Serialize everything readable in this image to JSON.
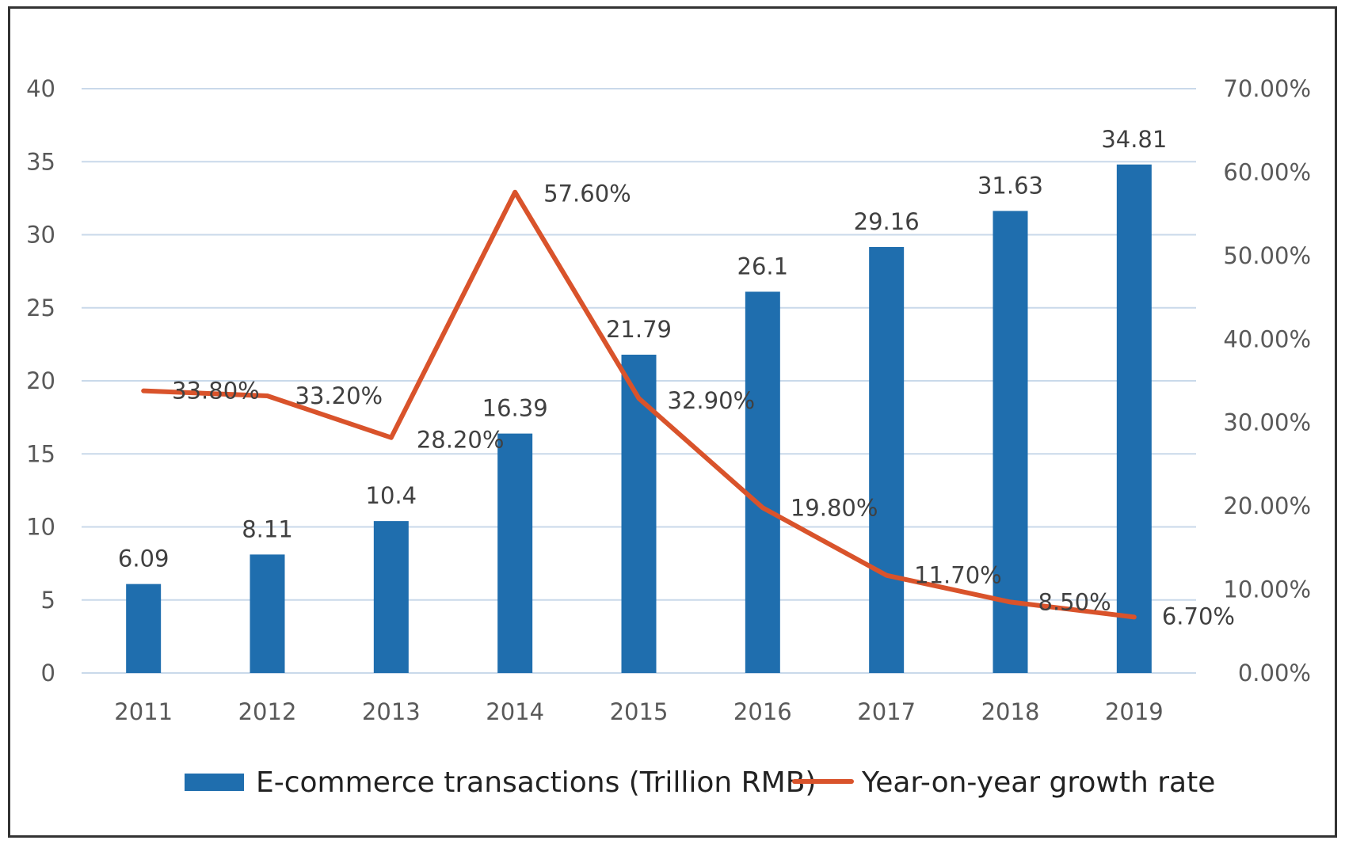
{
  "chart_data": {
    "type": "bar",
    "categories": [
      "2011",
      "2012",
      "2013",
      "2014",
      "2015",
      "2016",
      "2017",
      "2018",
      "2019"
    ],
    "series": [
      {
        "name": "E-commerce transactions (Trillion RMB)",
        "type": "bar",
        "axis": "left",
        "values": [
          6.09,
          8.11,
          10.4,
          16.39,
          21.79,
          26.1,
          29.16,
          31.63,
          34.81
        ],
        "labels": [
          "6.09",
          "8.11",
          "10.4",
          "16.39",
          "21.79",
          "26.1",
          "29.16",
          "31.63",
          "34.81"
        ],
        "color": "#1F6EAE"
      },
      {
        "name": "Year-on-year growth rate",
        "type": "line",
        "axis": "right",
        "values": [
          33.8,
          33.2,
          28.2,
          57.6,
          32.9,
          19.8,
          11.7,
          8.5,
          6.7
        ],
        "labels": [
          "33.80%",
          "33.20%",
          "28.20%",
          "57.60%",
          "32.90%",
          "19.80%",
          "11.70%",
          "8.50%",
          "6.70%"
        ],
        "color": "#D9532B"
      }
    ],
    "y_left": {
      "ylim": [
        0,
        40
      ],
      "ticks": [
        "0",
        "5",
        "10",
        "15",
        "20",
        "25",
        "30",
        "35",
        "40"
      ]
    },
    "y_right": {
      "ylim": [
        0,
        70
      ],
      "ticks": [
        "0.00%",
        "10.00%",
        "20.00%",
        "30.00%",
        "40.00%",
        "50.00%",
        "60.00%",
        "70.00%"
      ]
    },
    "grid": true,
    "legend_position": "bottom",
    "title": "",
    "xlabel": "",
    "ylabel": ""
  },
  "colors": {
    "bar": "#1F6EAE",
    "line": "#D9532B",
    "grid": "#C9D9EA",
    "axis_text": "#595959",
    "label_text": "#404040",
    "border": "#333333"
  }
}
